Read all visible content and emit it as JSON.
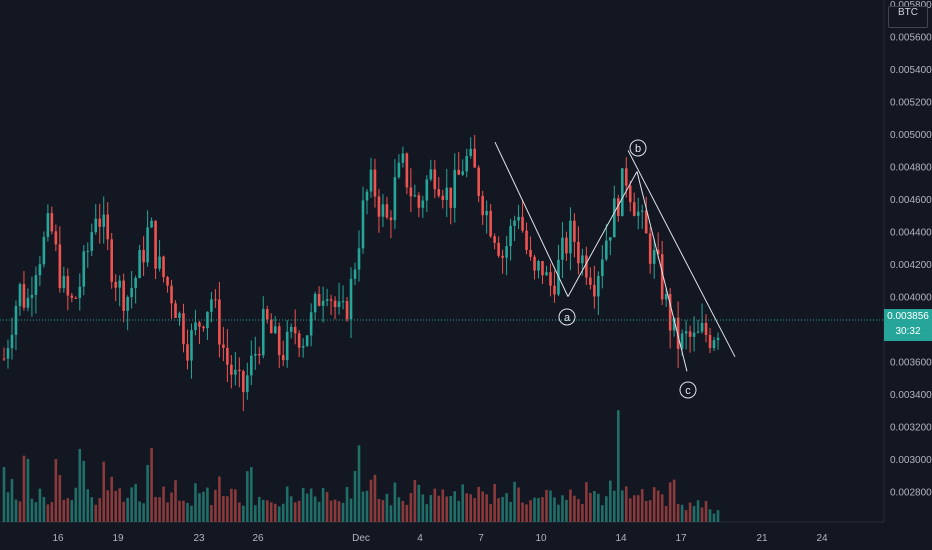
{
  "colors": {
    "background": "#131722",
    "up": "#26a69a",
    "down": "#ef5350",
    "up_volume": "#1f6f68",
    "down_volume": "#8a3a3b",
    "wave_line": "#e0e3eb",
    "axis_text": "#b2b5be",
    "price_line": "#26a69a"
  },
  "currency_label": "BTC",
  "last_price_tag": {
    "price": "0.003856",
    "countdown": "30:32"
  },
  "wave_labels": [
    "a",
    "b",
    "c"
  ],
  "chart_data": {
    "type": "candlestick",
    "title": "",
    "ylim": [
      0.0027,
      0.0058
    ],
    "x_ticks": [
      "16",
      "19",
      "23",
      "26",
      "Dec",
      "4",
      "7",
      "10",
      "14",
      "17",
      "21",
      "24"
    ],
    "y_ticks": [
      "0.002800",
      "0.003000",
      "0.003200",
      "0.003400",
      "0.003600",
      "0.003800",
      "0.004000",
      "0.004200",
      "0.004400",
      "0.004600",
      "0.004800",
      "0.005000",
      "0.005200",
      "0.005400",
      "0.005600",
      "0.005800"
    ],
    "current_price": 0.003856,
    "close_path": [
      0.00362,
      0.00385,
      0.00405,
      0.00395,
      0.0042,
      0.0043,
      0.00445,
      0.0042,
      0.004,
      0.00395,
      0.0041,
      0.0043,
      0.00455,
      0.0044,
      0.0042,
      0.00405,
      0.004,
      0.0041,
      0.00425,
      0.00445,
      0.0042,
      0.0041,
      0.004,
      0.00385,
      0.0037,
      0.0038,
      0.0039,
      0.004,
      0.0038,
      0.0036,
      0.0035,
      0.0034,
      0.00355,
      0.0037,
      0.00385,
      0.00375,
      0.00365,
      0.0037,
      0.0038,
      0.00375,
      0.00385,
      0.004,
      0.0041,
      0.00395,
      0.00385,
      0.004,
      0.0043,
      0.0046,
      0.0047,
      0.00455,
      0.00445,
      0.0047,
      0.0048,
      0.00465,
      0.00455,
      0.0047,
      0.00478,
      0.0047,
      0.0046,
      0.0047,
      0.00485,
      0.0048,
      0.00465,
      0.0045,
      0.0044,
      0.00425,
      0.0044,
      0.00455,
      0.0043,
      0.0041,
      0.0042,
      0.00405,
      0.00415,
      0.0043,
      0.0044,
      0.00425,
      0.0042,
      0.0041,
      0.0043,
      0.00445,
      0.0046,
      0.00475,
      0.0046,
      0.00445,
      0.0043,
      0.0042,
      0.004,
      0.0038,
      0.0037,
      0.00375,
      0.00372,
      0.00378,
      0.00376,
      0.00382
    ],
    "volume_levels": [
      0.55,
      0.35,
      0.25,
      0.75,
      0.2,
      0.3,
      0.15,
      0.45,
      0.2,
      0.25,
      0.65,
      0.3,
      0.2,
      0.5,
      0.35,
      0.25,
      0.2,
      0.3,
      0.15,
      0.55,
      0.2,
      0.25,
      0.35,
      0.15,
      0.2,
      0.3,
      0.25,
      0.2,
      0.35,
      0.3,
      0.25,
      0.15,
      0.45,
      0.2,
      0.25,
      0.15,
      0.2,
      0.3,
      0.2,
      0.25,
      0.3,
      0.2,
      0.35,
      0.25,
      0.2,
      0.3,
      0.55,
      0.3,
      0.35,
      0.25,
      0.2,
      0.3,
      0.2,
      0.25,
      0.35,
      0.2,
      0.3,
      0.25,
      0.2,
      0.25,
      0.3,
      0.2,
      0.25,
      0.2,
      0.3,
      0.25,
      0.2,
      0.3,
      0.2,
      0.25,
      0.2,
      0.25,
      0.2,
      0.2,
      0.25,
      0.2,
      0.3,
      0.25,
      0.2,
      0.3,
      0.85,
      0.3,
      0.25,
      0.3,
      0.2,
      0.25,
      0.2,
      0.3,
      0.2,
      0.15,
      0.2,
      0.15,
      0.1,
      0.12
    ],
    "wave_points": [
      {
        "label": "",
        "price": 0.00495
      },
      {
        "label": "a",
        "price": 0.004
      },
      {
        "label": "b",
        "price": 0.00477
      },
      {
        "label": "c",
        "price": 0.00354
      }
    ]
  }
}
